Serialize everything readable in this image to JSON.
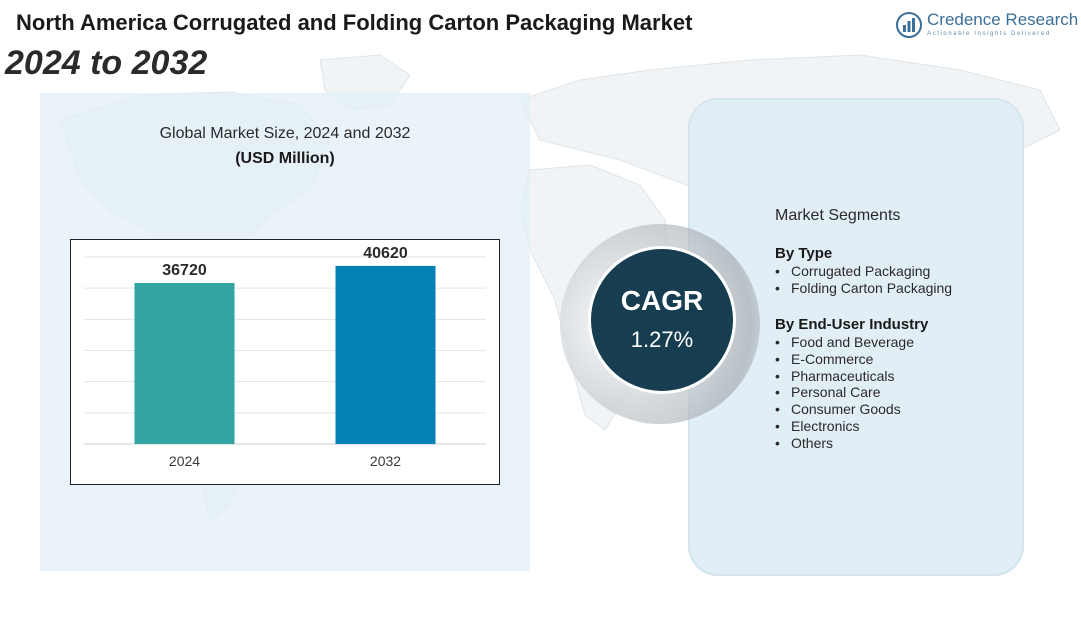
{
  "header": {
    "title": "North America Corrugated and Folding Carton Packaging Market",
    "subtitle": "2024 to 2032"
  },
  "logo": {
    "name": "Credence Research",
    "tagline": "Actionable Insights Delivered",
    "color": "#3c6f98"
  },
  "chart_panel": {
    "caption": "Global Market Size, 2024 and 2032",
    "unit": "(USD Million)"
  },
  "chart_data": {
    "type": "bar",
    "categories": [
      "2024",
      "2032"
    ],
    "values": [
      36720,
      40620
    ],
    "colors": [
      "#33a3a3",
      "#0582b5"
    ],
    "title": "Global Market Size, 2024 and 2032",
    "xlabel": "",
    "ylabel": "(USD Million)",
    "grid": true,
    "data_labels": true
  },
  "cagr": {
    "label": "CAGR",
    "value": "1.27%",
    "color": "#163e50"
  },
  "segments": {
    "heading": "Market Segments",
    "groups": [
      {
        "title": "By Type",
        "items": [
          "Corrugated Packaging",
          "Folding Carton Packaging"
        ]
      },
      {
        "title": "By End-User Industry",
        "items": [
          "Food and Beverage",
          "E-Commerce",
          "Pharmaceuticals",
          "Personal Care",
          "Consumer Goods",
          "Electronics",
          "Others"
        ]
      }
    ]
  }
}
